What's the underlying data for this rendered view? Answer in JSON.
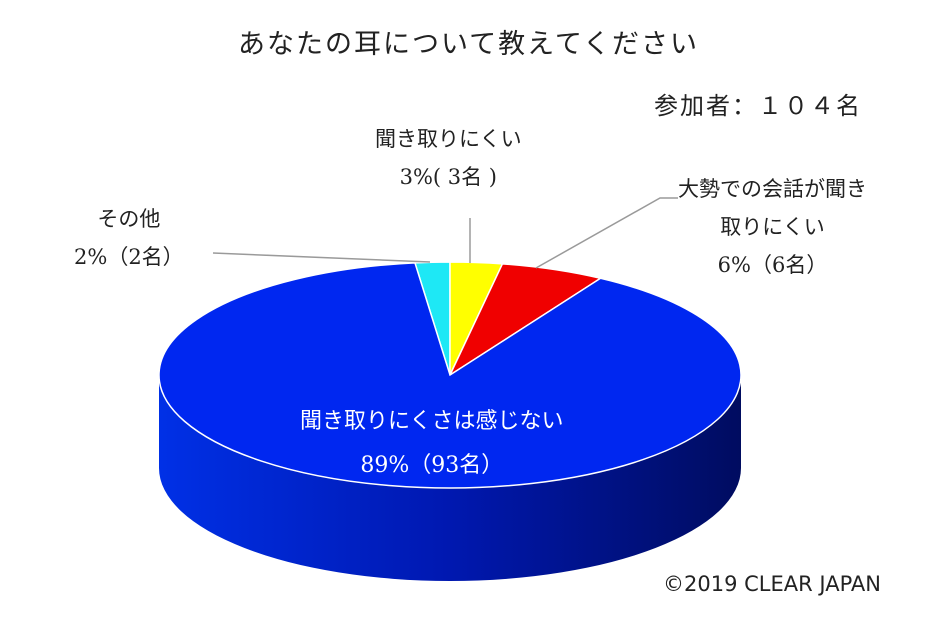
{
  "chart_data": {
    "type": "pie",
    "title": "あなたの耳について教えてください",
    "subtitle": "参加者：１０４名",
    "slices": [
      {
        "name": "聞き取りにくさは感じない",
        "percent": 89,
        "count_label": "89%（93名）",
        "value": 93,
        "color": "#0027F0"
      },
      {
        "name": "その他",
        "percent": 2,
        "count_label": "2%（2名）",
        "value": 2,
        "color": "#1EE8F5"
      },
      {
        "name": "聞き取りにくい",
        "percent": 3,
        "count_label": "3%（3名）",
        "value": 3,
        "color": "#FFFF00"
      },
      {
        "name": "大勢での会話が聞き取りにくい",
        "percent": 6,
        "count_label": "6%（6名）",
        "value": 6,
        "color": "#F00000"
      }
    ],
    "label_lines": {
      "s0": [
        "聞き取りにくさは感じない",
        "89%（93名）"
      ],
      "s1": [
        "その他",
        "2%（2名）"
      ],
      "s2": [
        "聞き取りにくい",
        "3%( 3名 )"
      ],
      "s3": [
        "大勢での会話が聞き",
        "取りにくい",
        "6%（6名）"
      ]
    },
    "legend": "none"
  },
  "footer": {
    "copyright": "©2019 CLEAR JAPAN"
  },
  "colors": {
    "side": "#0018A8",
    "leader": "#9A9A9A"
  }
}
